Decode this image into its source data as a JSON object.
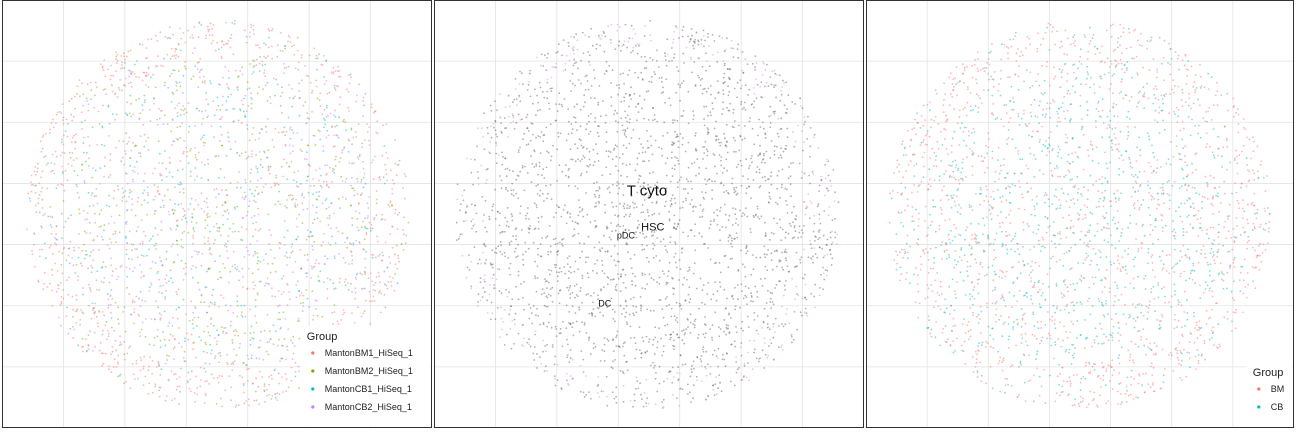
{
  "chart_data": [
    {
      "type": "scatter",
      "panel": "left",
      "title": "",
      "legend": {
        "title": "Group",
        "placement": "bottom-right",
        "entries": [
          {
            "label": "MantonBM1_HiSeq_1",
            "color": "#f8766d"
          },
          {
            "label": "MantonBM2_HiSeq_1",
            "color": "#7cae00"
          },
          {
            "label": "MantonCB1_HiSeq_1",
            "color": "#00bfc4"
          },
          {
            "label": "MantonCB2_HiSeq_1",
            "color": "#c77cff"
          }
        ]
      },
      "grid": true,
      "point_cloud": {
        "shape": "disc",
        "center": [
          0,
          0
        ],
        "radius": 1,
        "edge_group": "MantonBM1_HiSeq_1"
      }
    },
    {
      "type": "scatter",
      "panel": "middle",
      "title": "",
      "grid": true,
      "base_color": "#555555",
      "edge_color": "#e07be8",
      "labels": [
        {
          "text": "T cyto",
          "x": 0.0,
          "y": 0.1,
          "size": "large"
        },
        {
          "text": "HSC",
          "x": 0.03,
          "y": -0.08,
          "size": "medium"
        },
        {
          "text": "pDC",
          "x": -0.11,
          "y": -0.12,
          "size": "small"
        },
        {
          "text": "DC",
          "x": -0.22,
          "y": -0.47,
          "size": "small"
        }
      ]
    },
    {
      "type": "scatter",
      "panel": "right",
      "title": "",
      "legend": {
        "title": "Group",
        "placement": "bottom-right",
        "entries": [
          {
            "label": "BM",
            "color": "#f8766d"
          },
          {
            "label": "CB",
            "color": "#00bfc4"
          }
        ]
      },
      "grid": true,
      "point_cloud": {
        "shape": "disc",
        "center": [
          0,
          0
        ],
        "radius": 1,
        "edge_group": "BM"
      }
    }
  ]
}
